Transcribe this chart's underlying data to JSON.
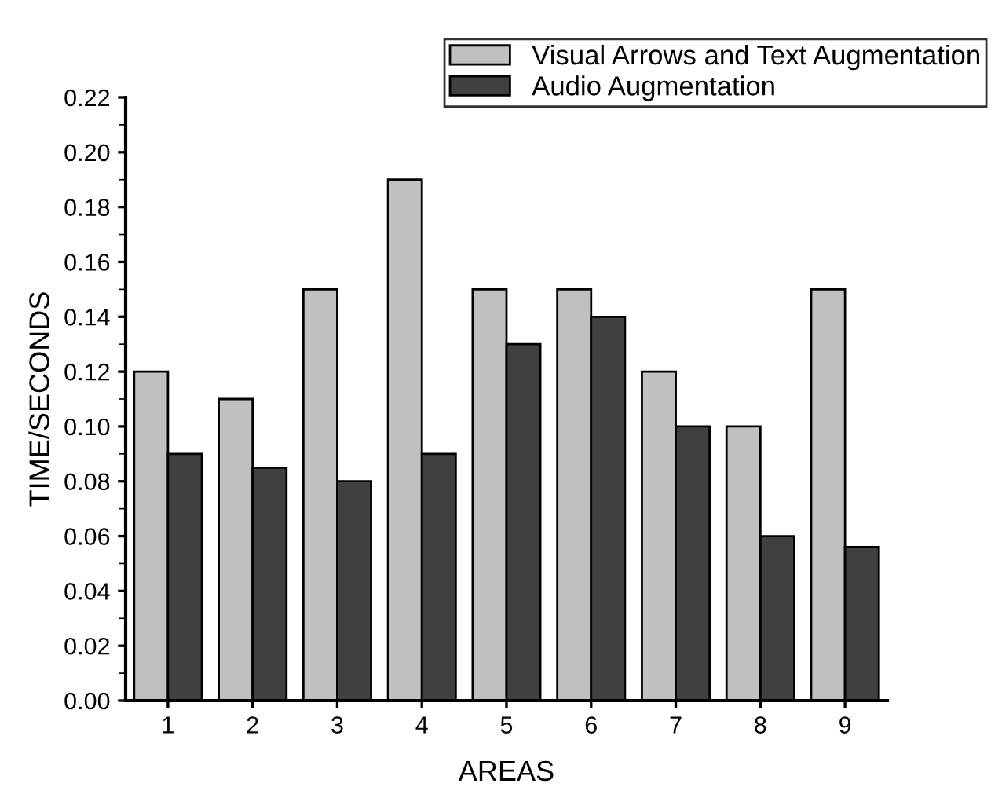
{
  "chart_data": {
    "type": "bar",
    "xlabel": "AREAS",
    "ylabel": "TIME/SECONDS",
    "categories": [
      "1",
      "2",
      "3",
      "4",
      "5",
      "6",
      "7",
      "8",
      "9"
    ],
    "series": [
      {
        "name": "Visual Arrows and Text Augmentation",
        "color": "#c0c0c0",
        "values": [
          0.12,
          0.11,
          0.15,
          0.19,
          0.15,
          0.15,
          0.12,
          0.1,
          0.15
        ]
      },
      {
        "name": "Audio Augmentation",
        "color": "#404040",
        "values": [
          0.09,
          0.085,
          0.08,
          0.09,
          0.13,
          0.14,
          0.1,
          0.06,
          0.056
        ]
      }
    ],
    "ylim": [
      0,
      0.22
    ],
    "yticks": [
      {
        "value": 0,
        "label": "0.00"
      },
      {
        "value": 0.02,
        "label": "0.02"
      },
      {
        "value": 0.04,
        "label": "0.04"
      },
      {
        "value": 0.06,
        "label": "0.06"
      },
      {
        "value": 0.08,
        "label": "0.08"
      },
      {
        "value": 0.1,
        "label": "0.10"
      },
      {
        "value": 0.12,
        "label": "0.12"
      },
      {
        "value": 0.14,
        "label": "0.14"
      },
      {
        "value": 0.16,
        "label": "0.16"
      },
      {
        "value": 0.18,
        "label": "0.18"
      },
      {
        "value": 0.2,
        "label": "0.20"
      },
      {
        "value": 0.22,
        "label": "0.22"
      }
    ],
    "grid": false,
    "legend": "top right"
  }
}
